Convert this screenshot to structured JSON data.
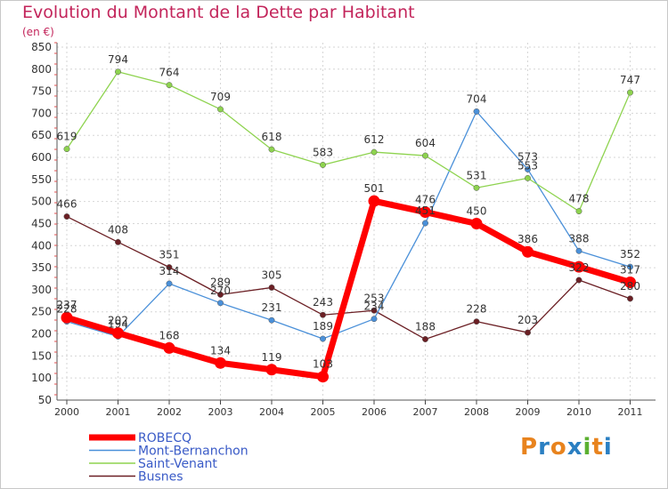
{
  "chart_data": {
    "type": "line",
    "title": "Evolution du Montant de la Dette par Habitant",
    "subtitle": "(en €)",
    "x": [
      "2000",
      "2001",
      "2002",
      "2003",
      "2004",
      "2005",
      "2006",
      "2007",
      "2008",
      "2009",
      "2010",
      "2011"
    ],
    "y_ticks": [
      "50",
      "100",
      "150",
      "200",
      "250",
      "300",
      "350",
      "400",
      "450",
      "500",
      "550",
      "600",
      "650",
      "700",
      "750",
      "800",
      "850"
    ],
    "ylim": [
      50,
      850
    ],
    "grid": true,
    "legend_position": "bottom-left",
    "series": [
      {
        "name": "ROBECQ",
        "color": "#ff0000",
        "values": [
          237,
          202,
          168,
          134,
          119,
          103,
          501,
          476,
          450,
          386,
          352,
          317
        ],
        "labels": [
          "237",
          "202",
          "168",
          "134",
          "119",
          "103",
          "501",
          "476",
          "450",
          "386",
          "",
          "317"
        ]
      },
      {
        "name": "Mont-Bernanchon",
        "color": "#4a90d9",
        "values": [
          228,
          194,
          314,
          270,
          231,
          189,
          234,
          451,
          704,
          573,
          388,
          352
        ],
        "labels": [
          "228",
          "194",
          "314",
          "270",
          "231",
          "189",
          "234",
          "451",
          "704",
          "573",
          "388",
          "352"
        ]
      },
      {
        "name": "Saint-Venant",
        "color": "#8ed34f",
        "values": [
          619,
          794,
          764,
          709,
          618,
          583,
          612,
          604,
          531,
          553,
          478,
          747
        ],
        "labels": [
          "619",
          "794",
          "764",
          "709",
          "618",
          "583",
          "612",
          "604",
          "531",
          "553",
          "478",
          "747"
        ]
      },
      {
        "name": "Busnes",
        "color": "#6b1f24",
        "values": [
          466,
          408,
          351,
          289,
          305,
          243,
          253,
          188,
          228,
          203,
          322,
          280
        ],
        "labels": [
          "466",
          "408",
          "351",
          "289",
          "305",
          "243",
          "253",
          "188",
          "228",
          "203",
          "322",
          "280"
        ]
      }
    ]
  },
  "logo": {
    "text": "Proxiti",
    "colors": [
      "#e8831e",
      "#2a7fc2",
      "#e8831e",
      "#2a7fc2",
      "#5bb031",
      "#e8831e",
      "#2a7fc2"
    ]
  }
}
